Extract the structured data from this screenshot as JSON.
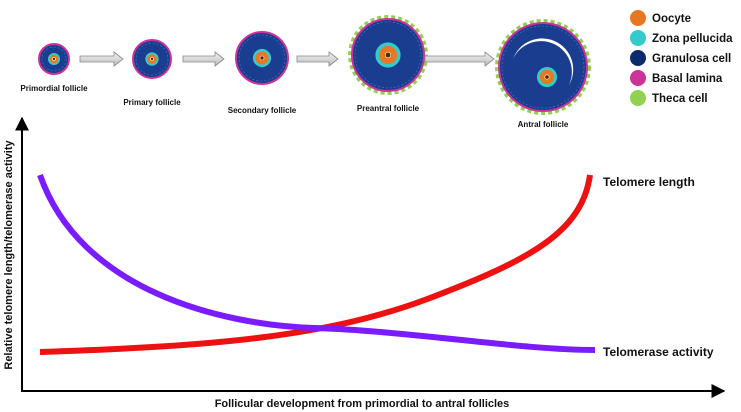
{
  "stages": [
    "Primordial follicle",
    "Primary follicle",
    "Secondary follicle",
    "Preantral follicle",
    "Antral follicle"
  ],
  "legend": [
    {
      "label": "Oocyte",
      "color": "#e87722"
    },
    {
      "label": "Zona pellucida",
      "color": "#33cccc"
    },
    {
      "label": "Granulosa cell",
      "color": "#0b2a6b"
    },
    {
      "label": "Basal lamina",
      "color": "#cc3399"
    },
    {
      "label": "Theca cell",
      "color": "#92d050"
    }
  ],
  "axes": {
    "y_label": "Relative telomere length/telomerase activity",
    "x_label": "Follicular development from primordial to antral follicles"
  },
  "curves": [
    {
      "label": "Telomere length",
      "color": "#ee1111"
    },
    {
      "label": "Telomerase activity",
      "color": "#7a1cff"
    }
  ]
}
